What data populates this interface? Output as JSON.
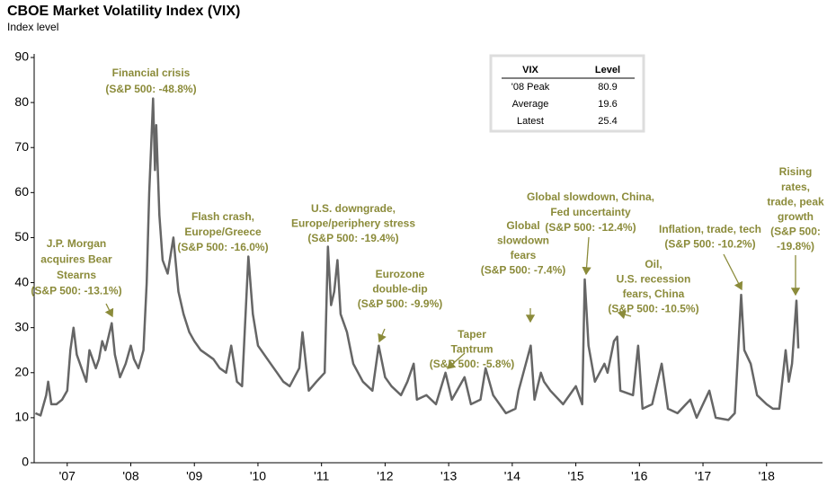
{
  "chart_data": {
    "type": "line",
    "title": "CBOE Market Volatility Index (VIX)",
    "y_label": "Index level",
    "color": "#666666",
    "annotation_color": "#8b8b3a",
    "xlim": [
      2006.98,
      2019.38
    ],
    "ylim": [
      0,
      90
    ],
    "yticks": [
      0,
      10,
      20,
      30,
      40,
      50,
      60,
      70,
      80,
      90
    ],
    "xticks": [
      {
        "value": 2007.5,
        "label": "'07"
      },
      {
        "value": 2008.5,
        "label": "'08"
      },
      {
        "value": 2009.5,
        "label": "'09"
      },
      {
        "value": 2010.5,
        "label": "'10"
      },
      {
        "value": 2011.5,
        "label": "'11"
      },
      {
        "value": 2012.5,
        "label": "'12"
      },
      {
        "value": 2013.5,
        "label": "'13"
      },
      {
        "value": 2014.5,
        "label": "'14"
      },
      {
        "value": 2015.5,
        "label": "'15"
      },
      {
        "value": 2016.5,
        "label": "'16"
      },
      {
        "value": 2017.5,
        "label": "'17"
      },
      {
        "value": 2018.5,
        "label": "'18"
      }
    ],
    "x": [
      2007.0,
      2007.08,
      2007.17,
      2007.2,
      2007.25,
      2007.33,
      2007.42,
      2007.5,
      2007.55,
      2007.6,
      2007.65,
      2007.75,
      2007.8,
      2007.85,
      2007.9,
      2007.95,
      2008.0,
      2008.05,
      2008.1,
      2008.2,
      2008.25,
      2008.33,
      2008.42,
      2008.5,
      2008.55,
      2008.62,
      2008.7,
      2008.75,
      2008.79,
      2008.82,
      2008.85,
      2008.88,
      2008.9,
      2008.95,
      2009.0,
      2009.08,
      2009.17,
      2009.25,
      2009.33,
      2009.42,
      2009.5,
      2009.6,
      2009.7,
      2009.8,
      2009.9,
      2010.0,
      2010.08,
      2010.17,
      2010.25,
      2010.35,
      2010.42,
      2010.5,
      2010.6,
      2010.7,
      2010.8,
      2010.9,
      2011.0,
      2011.15,
      2011.2,
      2011.3,
      2011.42,
      2011.55,
      2011.6,
      2011.65,
      2011.7,
      2011.75,
      2011.8,
      2011.9,
      2012.0,
      2012.15,
      2012.3,
      2012.4,
      2012.5,
      2012.6,
      2012.75,
      2012.85,
      2012.95,
      2013.0,
      2013.15,
      2013.3,
      2013.45,
      2013.55,
      2013.75,
      2013.85,
      2014.0,
      2014.08,
      2014.2,
      2014.4,
      2014.55,
      2014.6,
      2014.79,
      2014.85,
      2014.95,
      2015.0,
      2015.1,
      2015.3,
      2015.5,
      2015.6,
      2015.64,
      2015.7,
      2015.8,
      2015.95,
      2016.0,
      2016.1,
      2016.15,
      2016.2,
      2016.4,
      2016.48,
      2016.55,
      2016.7,
      2016.85,
      2016.95,
      2017.1,
      2017.3,
      2017.4,
      2017.6,
      2017.7,
      2017.9,
      2018.0,
      2018.1,
      2018.15,
      2018.25,
      2018.35,
      2018.5,
      2018.6,
      2018.7,
      2018.8,
      2018.85,
      2018.9,
      2018.97,
      2019.0
    ],
    "values": [
      11,
      10.5,
      15,
      18,
      13,
      13,
      14,
      16,
      25,
      30,
      24,
      20,
      18,
      25,
      23,
      21,
      23,
      27,
      25,
      31,
      24,
      19,
      22,
      26,
      23,
      21,
      25,
      40,
      60,
      70,
      80.9,
      65,
      75,
      55,
      45,
      42,
      50,
      38,
      33,
      29,
      27,
      25,
      24,
      23,
      21,
      20,
      26,
      18,
      17,
      45.8,
      33,
      26,
      24,
      22,
      20,
      18,
      17,
      21,
      29,
      16,
      18,
      20,
      48,
      35,
      38,
      45,
      33,
      29,
      22,
      18,
      16,
      26,
      19,
      17,
      15,
      18,
      22,
      14,
      15,
      13,
      20,
      14,
      19,
      13,
      14,
      21,
      15,
      11,
      12,
      16,
      26,
      14,
      20,
      18,
      16,
      13,
      17,
      13,
      40.7,
      26,
      18,
      22,
      20,
      27,
      28,
      16,
      15,
      26,
      12,
      13,
      22,
      12,
      11,
      14,
      10,
      16,
      10,
      9.5,
      11,
      37.3,
      25,
      22,
      15,
      13,
      12,
      12,
      25,
      18,
      22,
      36,
      25.4
    ],
    "annotations": [
      [
        "J.P. Morgan",
        "acquires Bear",
        "Stearns",
        "(S&P 500: -13.1%)"
      ],
      [
        "Financial crisis",
        "(S&P 500: -48.8%)"
      ],
      [
        "Flash crash,",
        "Europe/Greece",
        "(S&P 500: -16.0%)"
      ],
      [
        "U.S. downgrade,",
        "Europe/periphery stress",
        "(S&P 500: -19.4%)"
      ],
      [
        "Eurozone",
        "double-dip",
        "(S&P 500: -9.9%)"
      ],
      [
        "Taper",
        "Tantrum",
        "(S&P 500: -5.8%)"
      ],
      [
        "Global",
        "slowdown",
        "fears",
        "(S&P 500: -7.4%)"
      ],
      [
        "Global slowdown, China,",
        "Fed uncertainty",
        "(S&P 500: -12.4%)"
      ],
      [
        "Oil,",
        "U.S. recession",
        "fears, China",
        "(S&P 500: -10.5%)"
      ],
      [
        "Inflation, trade, tech",
        "(S&P 500: -10.2%)"
      ],
      [
        "Rising",
        "rates,",
        "trade, peak",
        "growth",
        "(S&P 500:",
        "-19.8%)"
      ]
    ],
    "table": {
      "columns": [
        "VIX",
        "Level"
      ],
      "rows": [
        [
          "'08 Peak",
          80.9
        ],
        [
          "Average",
          19.6
        ],
        [
          "Latest",
          25.4
        ]
      ]
    }
  }
}
